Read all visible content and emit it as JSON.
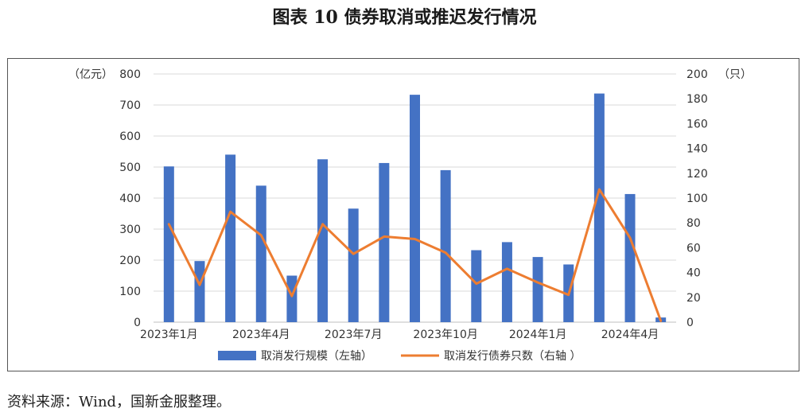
{
  "figure_title": "图表 10  债券取消或推迟发行情况",
  "source_note": "资料来源：Wind，国新金服整理。",
  "chart_data": {
    "type": "bar",
    "categories": [
      "2023年1月",
      "2023年2月",
      "2023年3月",
      "2023年4月",
      "2023年5月",
      "2023年6月",
      "2023年7月",
      "2023年8月",
      "2023年9月",
      "2023年10月",
      "2023年11月",
      "2023年12月",
      "2024年1月",
      "2024年2月",
      "2024年3月",
      "2024年4月",
      "2024年5月"
    ],
    "x_tick_labels": [
      "2023年1月",
      "2023年4月",
      "2023年7月",
      "2023年10月",
      "2024年1月",
      "2024年4月"
    ],
    "x_tick_indices": [
      0,
      3,
      6,
      9,
      12,
      15
    ],
    "series": [
      {
        "name": "取消发行规模（左轴）",
        "type": "bar",
        "axis": "left",
        "color": "#4472C4",
        "values": [
          502,
          197,
          540,
          440,
          150,
          525,
          366,
          513,
          733,
          490,
          232,
          258,
          210,
          186,
          737,
          413,
          15
        ]
      },
      {
        "name": "取消发行债券只数（右轴 ）",
        "type": "line",
        "axis": "right",
        "color": "#ED7D31",
        "values": [
          79,
          30,
          89,
          70,
          21,
          79,
          55,
          69,
          67,
          56,
          31,
          43,
          32,
          22,
          107,
          68,
          1
        ]
      }
    ],
    "left_axis": {
      "unit": "（亿元）",
      "ylim": [
        0,
        800
      ],
      "ticks": [
        0,
        100,
        200,
        300,
        400,
        500,
        600,
        700,
        800
      ]
    },
    "right_axis": {
      "unit": "（只）",
      "ylim": [
        0,
        200
      ],
      "ticks": [
        0,
        20,
        40,
        60,
        80,
        100,
        120,
        140,
        160,
        180,
        200
      ]
    },
    "grid": true,
    "legend_position": "bottom"
  }
}
